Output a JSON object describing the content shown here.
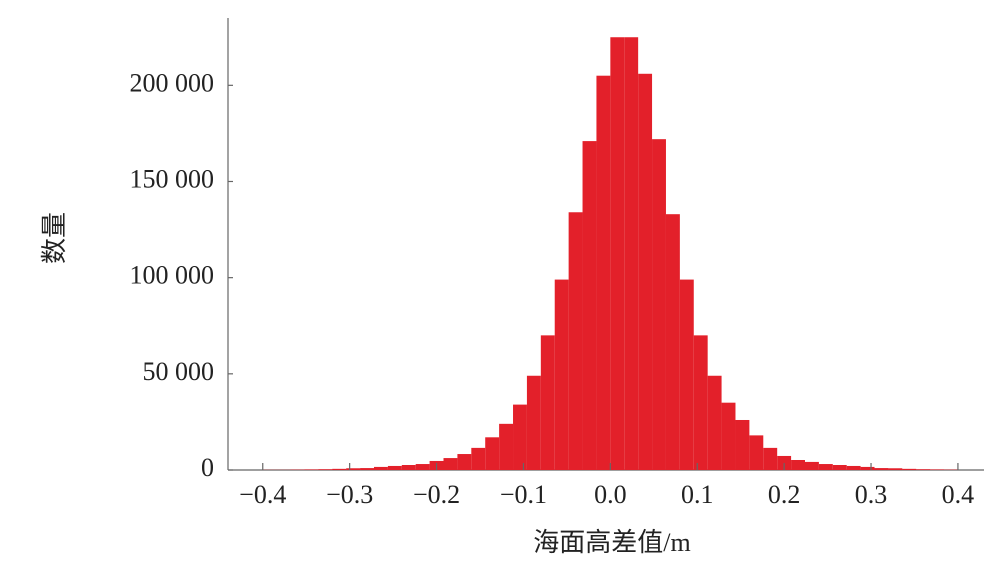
{
  "chart_data": {
    "type": "histogram",
    "x_label": "海面高差值/m",
    "y_label": "数量",
    "bins": [
      -0.4,
      -0.384,
      -0.368,
      -0.352,
      -0.336,
      -0.32,
      -0.304,
      -0.288,
      -0.272,
      -0.256,
      -0.24,
      -0.224,
      -0.208,
      -0.192,
      -0.176,
      -0.16,
      -0.144,
      -0.128,
      -0.112,
      -0.096,
      -0.08,
      -0.064,
      -0.048,
      -0.032,
      -0.016,
      0,
      0.016,
      0.032,
      0.048,
      0.064,
      0.08,
      0.096,
      0.112,
      0.128,
      0.144,
      0.16,
      0.176,
      0.192,
      0.208,
      0.224,
      0.24,
      0.256,
      0.272,
      0.288,
      0.304,
      0.32,
      0.336,
      0.352,
      0.368,
      0.384,
      0.4
    ],
    "values": [
      100,
      100,
      200,
      300,
      400,
      600,
      900,
      1000,
      1600,
      2100,
      2600,
      3100,
      4700,
      6200,
      8300,
      11500,
      17000,
      24000,
      34000,
      49000,
      70000,
      99000,
      134000,
      171000,
      205000,
      225000,
      225000,
      206000,
      172000,
      133000,
      99000,
      70000,
      49000,
      35000,
      26000,
      18000,
      11500,
      7300,
      5200,
      4200,
      3100,
      2600,
      2100,
      1600,
      1000,
      900,
      600,
      400,
      300,
      200
    ],
    "color": "#e3202a",
    "xlim": [
      -0.44,
      0.43
    ],
    "xticks": [
      {
        "value": -0.4,
        "label": "−0.4"
      },
      {
        "value": -0.3,
        "label": "−0.3"
      },
      {
        "value": -0.2,
        "label": "−0.2"
      },
      {
        "value": -0.1,
        "label": "−0.1"
      },
      {
        "value": 0,
        "label": "0.0"
      },
      0.1,
      0.2,
      0.3,
      0.4
    ],
    "ylim": [
      0,
      235000
    ],
    "yticks": [
      0,
      {
        "value": 50000,
        "label": "50 000"
      },
      {
        "value": 100000,
        "label": "100 000"
      },
      {
        "value": 150000,
        "label": "150 000"
      },
      {
        "value": 200000,
        "label": "200 000"
      }
    ],
    "grid": false
  }
}
